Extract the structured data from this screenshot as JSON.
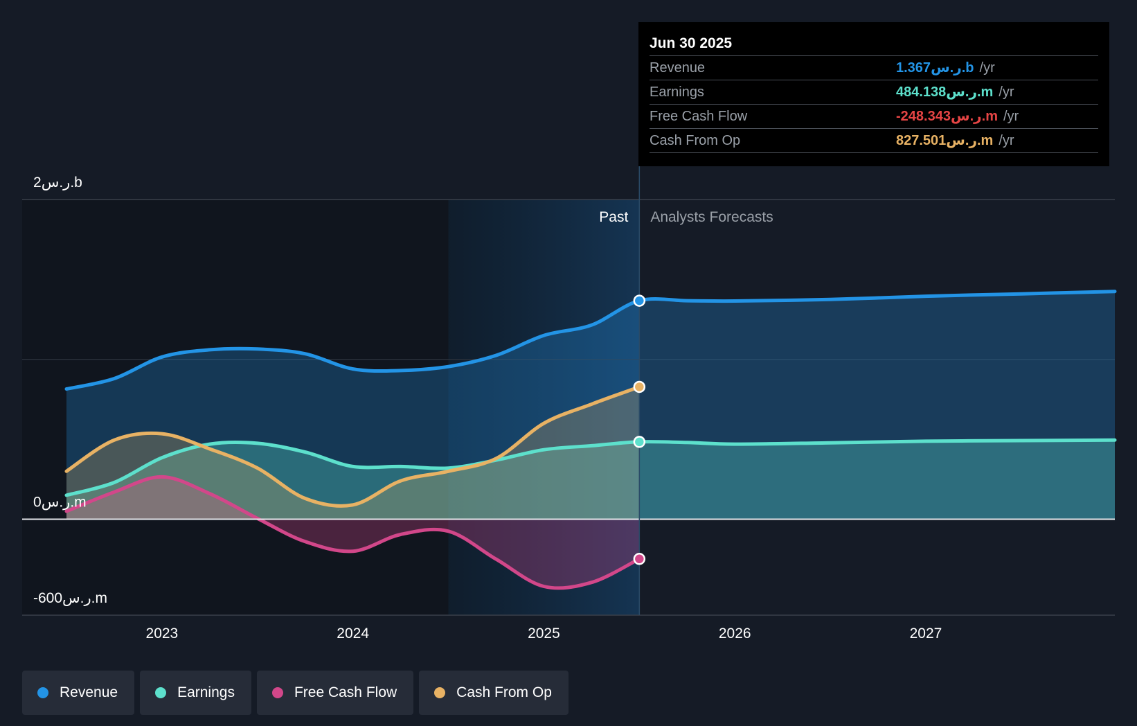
{
  "chart_data": {
    "type": "area",
    "currency_unit": "ر.س",
    "y_tick_labels": [
      "2ر.س.b",
      "0ر.س.m",
      "-600ر.س.m"
    ],
    "ylim": [
      -600,
      2000
    ],
    "x_tick_labels": [
      "2023",
      "2024",
      "2025",
      "2026",
      "2027"
    ],
    "xlim": [
      2022.5,
      2027.99
    ],
    "past_label": "Past",
    "forecast_label": "Analysts Forecasts",
    "divider_x": 2025.5,
    "highlight_start_x": 2024.5,
    "series": [
      {
        "name": "Revenue",
        "color": "#2394e6",
        "x": [
          2022.5,
          2022.75,
          2023.0,
          2023.25,
          2023.5,
          2023.75,
          2024.0,
          2024.25,
          2024.5,
          2024.75,
          2025.0,
          2025.25,
          2025.5,
          2025.75,
          2026.0,
          2026.5,
          2027.0,
          2027.5,
          2027.99
        ],
        "y": [
          815,
          880,
          1015,
          1060,
          1065,
          1035,
          940,
          930,
          955,
          1025,
          1150,
          1215,
          1367,
          1367,
          1365,
          1375,
          1395,
          1410,
          1425
        ]
      },
      {
        "name": "Earnings",
        "color": "#5de0cc",
        "x": [
          2022.5,
          2022.75,
          2023.0,
          2023.25,
          2023.5,
          2023.75,
          2024.0,
          2024.25,
          2024.5,
          2024.75,
          2025.0,
          2025.25,
          2025.5,
          2025.75,
          2026.0,
          2026.5,
          2027.0,
          2027.5,
          2027.99
        ],
        "y": [
          150,
          230,
          385,
          470,
          475,
          420,
          330,
          330,
          320,
          370,
          435,
          460,
          484,
          480,
          470,
          478,
          488,
          492,
          495
        ]
      },
      {
        "name": "Free Cash Flow",
        "color": "#d2478a",
        "x": [
          2022.5,
          2022.75,
          2023.0,
          2023.25,
          2023.5,
          2023.75,
          2024.0,
          2024.25,
          2024.5,
          2024.75,
          2025.0,
          2025.25,
          2025.5
        ],
        "y": [
          50,
          170,
          265,
          160,
          5,
          -140,
          -200,
          -95,
          -75,
          -250,
          -420,
          -395,
          -248
        ]
      },
      {
        "name": "Cash From Op",
        "color": "#e8b264",
        "x": [
          2022.5,
          2022.75,
          2023.0,
          2023.25,
          2023.5,
          2023.75,
          2024.0,
          2024.25,
          2024.5,
          2024.75,
          2025.0,
          2025.25,
          2025.5
        ],
        "y": [
          300,
          495,
          535,
          440,
          320,
          130,
          90,
          240,
          300,
          380,
          600,
          720,
          828
        ]
      }
    ]
  },
  "tooltip": {
    "date": "Jun 30 2025",
    "unit_suffix": "/yr",
    "rows": [
      {
        "label": "Revenue",
        "value": "1.367ر.س.b",
        "color": "#2394e6"
      },
      {
        "label": "Earnings",
        "value": "484.138ر.س.m",
        "color": "#5de0cc"
      },
      {
        "label": "Free Cash Flow",
        "value": "-248.343ر.س.m",
        "color": "#e64545"
      },
      {
        "label": "Cash From Op",
        "value": "827.501ر.س.m",
        "color": "#e8b264"
      }
    ]
  },
  "legend": [
    {
      "label": "Revenue",
      "color": "#2394e6"
    },
    {
      "label": "Earnings",
      "color": "#5de0cc"
    },
    {
      "label": "Free Cash Flow",
      "color": "#d2478a"
    },
    {
      "label": "Cash From Op",
      "color": "#e8b264"
    }
  ]
}
